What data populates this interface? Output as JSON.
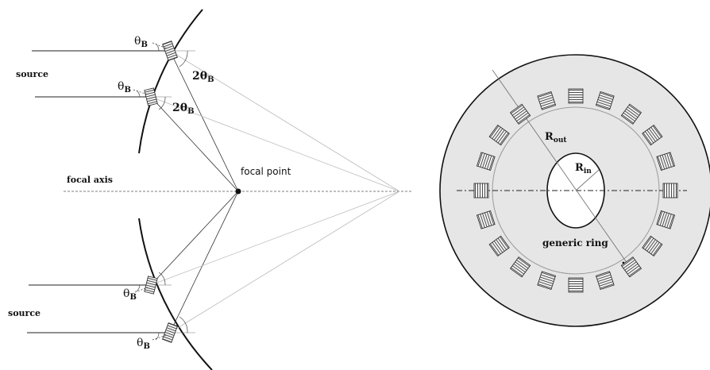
{
  "left_panel": {
    "source_top": "source",
    "source_bottom": "source",
    "focal_axis": "focal axis",
    "focal_point": "focal point",
    "theta_symbol": "θ",
    "theta_sub": "B",
    "two_theta_prefix": "2θ",
    "two_theta_sub": "B"
  },
  "right_panel": {
    "r_out_symbol": "R",
    "r_out_sub": "out",
    "r_in_symbol": "R",
    "r_in_sub": "in",
    "generic_ring": "generic ring",
    "crystal_count": 20
  },
  "colors": {
    "stroke": "#111111",
    "light_ray": "#b8b8b8",
    "disc_fill": "#e6e6e6",
    "ring_line": "#9a9a9a",
    "crystal_fill": "#f4f4f4"
  }
}
